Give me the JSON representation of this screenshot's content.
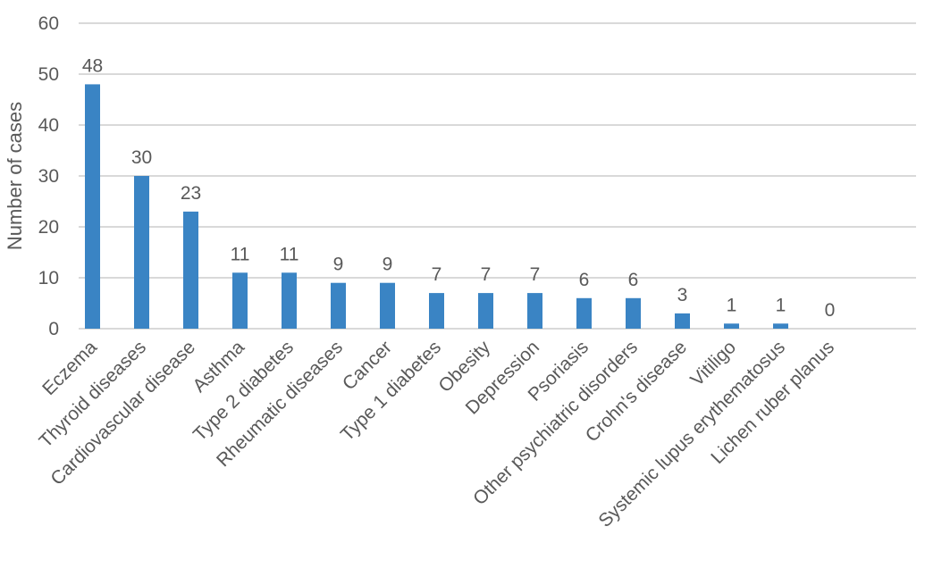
{
  "chart_data": {
    "type": "bar",
    "title": "",
    "xlabel": "",
    "ylabel": "Number of cases",
    "ylim": [
      0,
      60
    ],
    "yticks": [
      0,
      10,
      20,
      30,
      40,
      50,
      60
    ],
    "grid": true,
    "legend": "none",
    "bar_color": "#3a84c4",
    "grid_color": "#d9d9d9",
    "categories": [
      "Eczema",
      "Thyroid diseases",
      "Cardiovascular disease",
      "Asthma",
      "Type 2 diabetes",
      "Rheumatic diseases",
      "Cancer",
      "Type 1 diabetes",
      "Obesity",
      "Depression",
      "Psoriasis",
      "Other psychiatric disorders",
      "Crohn's disease",
      "Vitiligo",
      "Systemic lupus erythematosus",
      "Lichen ruber planus"
    ],
    "values": [
      48,
      30,
      23,
      11,
      11,
      9,
      9,
      7,
      7,
      7,
      6,
      6,
      3,
      1,
      1,
      0
    ],
    "data_labels": true
  }
}
